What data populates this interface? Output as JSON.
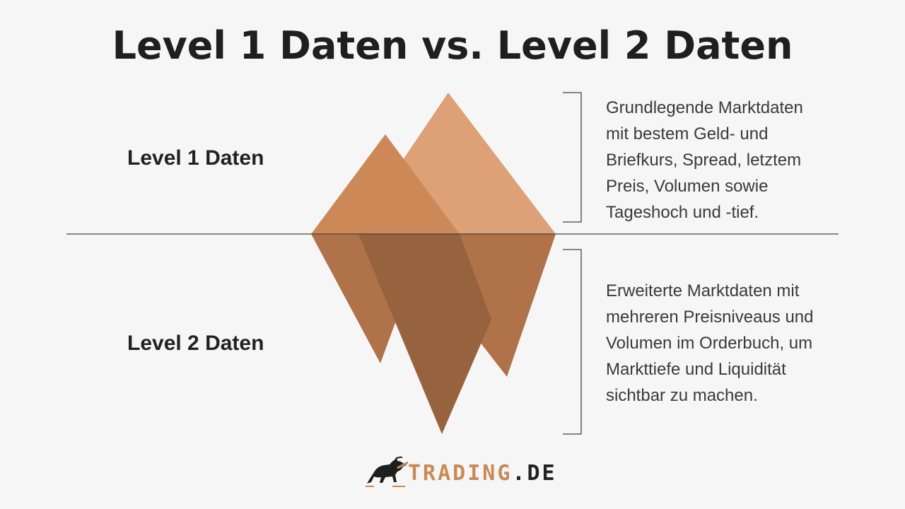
{
  "title": "Level 1 Daten vs. Level 2 Daten",
  "levels": [
    {
      "label": "Level 1 Daten",
      "description": [
        "Grundlegende Marktdaten",
        "mit bestem Geld- und",
        "Briefkurs, Spread, letztem",
        "Preis, Volumen sowie",
        "Tageshoch und -tief."
      ]
    },
    {
      "label": "Level 2 Daten",
      "description": [
        "Erweiterte Marktdaten mit",
        "mehreren Preisniveaus und",
        "Volumen im Orderbuch, um",
        "Markttiefe und Liquidität",
        "sichtbar zu machen."
      ]
    }
  ],
  "logo": {
    "brand": "TRADING",
    "tld": ".DE",
    "icon": "bull-icon"
  },
  "colors": {
    "background": "#f6f6f6",
    "peak_light": "#dda077",
    "peak_dark": "#cc8957",
    "below_mid": "#b07248",
    "below_dark": "#96633e",
    "line": "#444444",
    "accent": "#c98a55"
  }
}
